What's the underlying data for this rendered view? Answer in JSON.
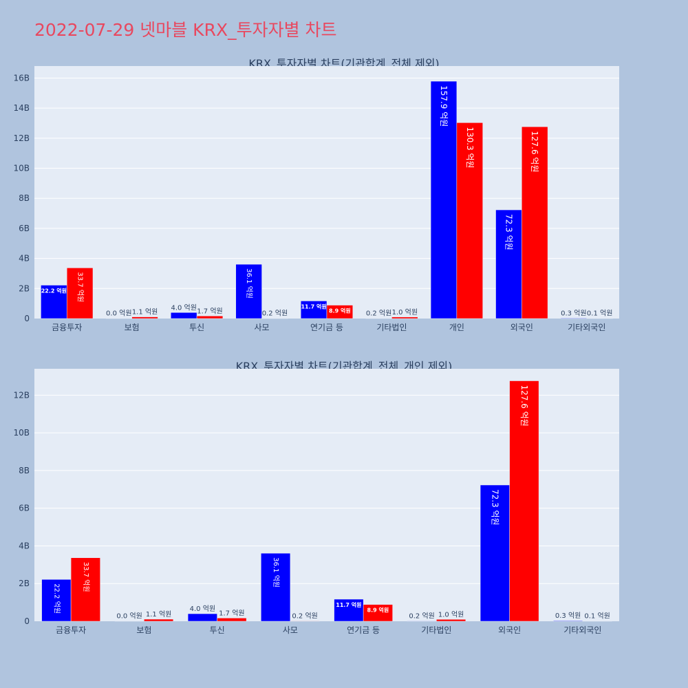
{
  "page_title": "2022-07-29 넷마블 KRX_투자자별 차트",
  "colors": {
    "buy": "#0000ff",
    "sell": "#ff0000",
    "plot_bg": "#e5ecf6",
    "paper_bg": "#b0c4de",
    "title": "#e8485f"
  },
  "chart_data": [
    {
      "type": "bar",
      "title": "KRX_투자자별 차트(기관합계_전체 제외)",
      "categories": [
        "금융투자",
        "보험",
        "투신",
        "사모",
        "연기금 등",
        "기타법인",
        "개인",
        "외국인",
        "기타외국인"
      ],
      "series": [
        {
          "values": [
            2.22,
            0.0,
            0.4,
            3.61,
            1.17,
            0.02,
            15.79,
            7.23,
            0.03
          ],
          "labels": [
            "22.2 억원",
            "0.0 억원",
            "4.0 억원",
            "36.1 억원",
            "11.7 억원",
            "0.2 억원",
            "157.9 억원",
            "72.3 억원",
            "0.3 억원"
          ]
        },
        {
          "values": [
            3.37,
            0.11,
            0.17,
            0.02,
            0.89,
            0.1,
            13.03,
            12.76,
            0.01
          ],
          "labels": [
            "33.7 억원",
            "1.1 억원",
            "1.7 억원",
            "0.2 억원",
            "8.9 억원",
            "1.0 억원",
            "130.3 억원",
            "127.6 억원",
            "0.1 억원"
          ]
        }
      ],
      "yunit": "B",
      "yticks": [
        0,
        2,
        4,
        6,
        8,
        10,
        12,
        14,
        16
      ],
      "ylim": [
        0,
        16.8
      ],
      "grid": true
    },
    {
      "type": "bar",
      "title": "KRX_투자자별 차트(기관합계_전체_개인 제외)",
      "categories": [
        "금융투자",
        "보험",
        "투신",
        "사모",
        "연기금 등",
        "기타법인",
        "외국인",
        "기타외국인"
      ],
      "series": [
        {
          "values": [
            2.22,
            0.0,
            0.4,
            3.61,
            1.17,
            0.02,
            7.23,
            0.03
          ],
          "labels": [
            "22.2 억원",
            "0.0 억원",
            "4.0 억원",
            "36.1 억원",
            "11.7 억원",
            "0.2 억원",
            "72.3 억원",
            "0.3 억원"
          ]
        },
        {
          "values": [
            3.37,
            0.11,
            0.17,
            0.02,
            0.89,
            0.1,
            12.76,
            0.01
          ],
          "labels": [
            "33.7 억원",
            "1.1 억원",
            "1.7 억원",
            "0.2 억원",
            "8.9 억원",
            "1.0 억원",
            "127.6 억원",
            "0.1 억원"
          ]
        }
      ],
      "yunit": "B",
      "yticks": [
        0,
        2,
        4,
        6,
        8,
        10,
        12
      ],
      "ylim": [
        0,
        13.4
      ],
      "grid": true
    }
  ]
}
